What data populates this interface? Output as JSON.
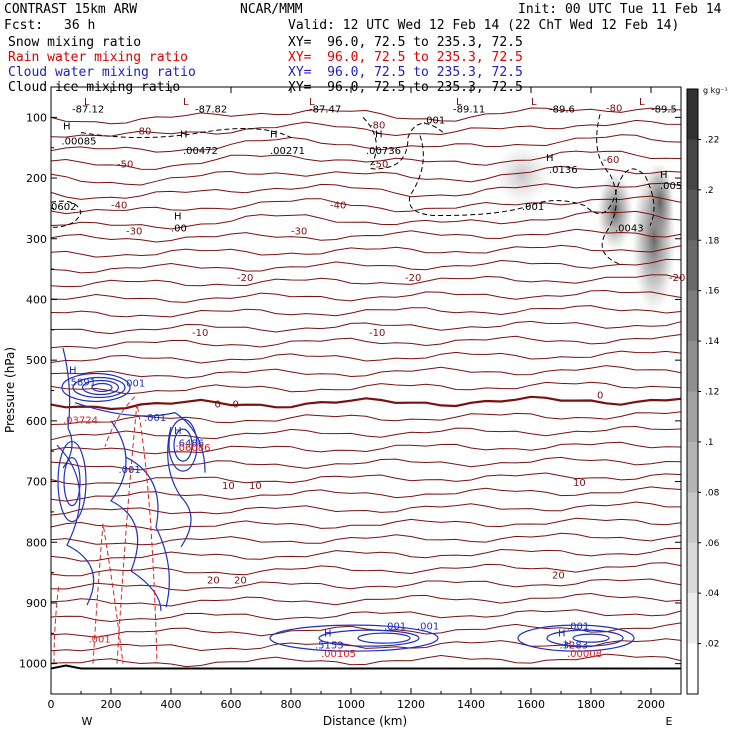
{
  "header": {
    "model": "CONTRAST 15km ARW",
    "center": "NCAR/MMM",
    "init": "Init: 00 UTC Tue 11 Feb 14",
    "fcst_label": "Fcst:",
    "fcst_value": "36 h",
    "valid": "Valid: 12 UTC Wed 12 Feb 14 (22 ChT Wed 12 Feb 14)"
  },
  "fields": [
    {
      "name": "Snow mixing ratio",
      "xy": "XY=  96.0, 72.5 to 235.3, 72.5",
      "color": "#000000"
    },
    {
      "name": "Rain water mixing ratio",
      "xy": "XY=  96.0, 72.5 to 235.3, 72.5",
      "color": "#e00000"
    },
    {
      "name": "Cloud water mixing ratio",
      "xy": "XY=  96.0, 72.5 to 235.3, 72.5",
      "color": "#2020c0"
    },
    {
      "name": "Cloud ice mixing ratio",
      "xy": "XY=  96.0, 72.5 to 235.3, 72.5",
      "color": "#000000"
    }
  ],
  "chart_data": {
    "type": "cross-section",
    "xlabel": "Distance (km)",
    "ylabel": "Pressure (hPa)",
    "xlim": [
      0,
      2100
    ],
    "ylim": [
      1050,
      50
    ],
    "x_ticks": [
      0,
      200,
      400,
      600,
      800,
      1000,
      1200,
      1400,
      1600,
      1800,
      2000
    ],
    "y_ticks": [
      100,
      200,
      300,
      400,
      500,
      600,
      700,
      800,
      900,
      1000
    ],
    "end_labels": {
      "left": "W",
      "right": "E"
    },
    "colorbar": {
      "units": "g kg⁻¹",
      "ticks": [
        0.02,
        0.04,
        0.06,
        0.08,
        0.1,
        0.12,
        0.14,
        0.16,
        0.18,
        0.2,
        0.22
      ],
      "tick_labels": [
        ".02",
        ".04",
        ".06",
        ".08",
        ".1",
        ".12",
        ".14",
        ".16",
        ".18",
        ".2",
        ".22"
      ],
      "max": 0.24
    },
    "temperature_labels": [
      {
        "x": 280,
        "p": 128,
        "text": "-80"
      },
      {
        "x": 1060,
        "p": 118,
        "text": "-80"
      },
      {
        "x": 1850,
        "p": 90,
        "text": "-80"
      },
      {
        "x": 1840,
        "p": 175,
        "text": "-60"
      },
      {
        "x": 220,
        "p": 183,
        "text": "-50"
      },
      {
        "x": 1070,
        "p": 183,
        "text": "-50"
      },
      {
        "x": 200,
        "p": 250,
        "text": "-40"
      },
      {
        "x": 930,
        "p": 250,
        "text": "-40"
      },
      {
        "x": 250,
        "p": 293,
        "text": "-30"
      },
      {
        "x": 800,
        "p": 293,
        "text": "-30"
      },
      {
        "x": 620,
        "p": 370,
        "text": "-20"
      },
      {
        "x": 1180,
        "p": 370,
        "text": "-20"
      },
      {
        "x": 2060,
        "p": 370,
        "text": "-20"
      },
      {
        "x": 470,
        "p": 460,
        "text": "-10"
      },
      {
        "x": 1060,
        "p": 460,
        "text": "-10"
      },
      {
        "x": 545,
        "p": 578,
        "text": "0"
      },
      {
        "x": 605,
        "p": 578,
        "text": "0"
      },
      {
        "x": 1820,
        "p": 563,
        "text": "0"
      },
      {
        "x": 570,
        "p": 712,
        "text": "10"
      },
      {
        "x": 660,
        "p": 712,
        "text": "10"
      },
      {
        "x": 1740,
        "p": 707,
        "text": "10"
      },
      {
        "x": 520,
        "p": 868,
        "text": "20"
      },
      {
        "x": 610,
        "p": 868,
        "text": "20"
      },
      {
        "x": 1670,
        "p": 860,
        "text": "20"
      }
    ],
    "tropopause_minima": [
      {
        "x": 70,
        "p": 92,
        "text": "-87.12"
      },
      {
        "x": 480,
        "p": 92,
        "text": "-87.82"
      },
      {
        "x": 860,
        "p": 92,
        "text": "-87.47"
      },
      {
        "x": 1340,
        "p": 92,
        "text": "-89.11"
      },
      {
        "x": 1660,
        "p": 92,
        "text": "-89.6"
      },
      {
        "x": 2000,
        "p": 92,
        "text": "-89.5"
      }
    ],
    "ice_maxima": [
      {
        "x": 35,
        "p": 145,
        "text": ".00085"
      },
      {
        "x": 440,
        "p": 160,
        "text": ".00472"
      },
      {
        "x": 730,
        "p": 160,
        "text": ".00271"
      },
      {
        "x": 1050,
        "p": 160,
        "text": ".00736"
      },
      {
        "x": 1660,
        "p": 192,
        "text": ".0136"
      },
      {
        "x": 2030,
        "p": 218,
        "text": ".005"
      },
      {
        "x": 0,
        "p": 253,
        "text": "0602"
      },
      {
        "x": 400,
        "p": 288,
        "text": ".00"
      }
    ],
    "ice_contour_labels": [
      {
        "x": 1240,
        "p": 110,
        "text": ".001"
      },
      {
        "x": 1570,
        "p": 253,
        "text": ".001"
      },
      {
        "x": 1880,
        "p": 288,
        "text": ".0043"
      }
    ],
    "cloud_water_labels": [
      {
        "x": 55,
        "p": 542,
        "text": ".5891"
      },
      {
        "x": 240,
        "p": 543,
        "text": ".001"
      },
      {
        "x": 310,
        "p": 600,
        "text": ".001"
      },
      {
        "x": 225,
        "p": 686,
        "text": ".001"
      },
      {
        "x": 415,
        "p": 642,
        "text": ".6486"
      },
      {
        "x": 1110,
        "p": 944,
        "text": ".001"
      },
      {
        "x": 1220,
        "p": 944,
        "text": ".001"
      },
      {
        "x": 880,
        "p": 975,
        "text": ".5153"
      },
      {
        "x": 1695,
        "p": 975,
        "text": ".3283"
      },
      {
        "x": 1720,
        "p": 944,
        "text": ".001"
      }
    ],
    "rain_labels": [
      {
        "x": 40,
        "p": 604,
        "text": ".03724"
      },
      {
        "x": 415,
        "p": 650,
        "text": ".06086"
      },
      {
        "x": 125,
        "p": 965,
        "text": ".001"
      },
      {
        "x": 900,
        "p": 989,
        "text": ".00105"
      },
      {
        "x": 1720,
        "p": 989,
        "text": ".00008"
      }
    ],
    "high_markers": [
      {
        "x": 40,
        "p": 120,
        "color": "#000000"
      },
      {
        "x": 430,
        "p": 133,
        "color": "#000000"
      },
      {
        "x": 730,
        "p": 133,
        "color": "#000000"
      },
      {
        "x": 1080,
        "p": 133,
        "color": "#000000"
      },
      {
        "x": 1650,
        "p": 172,
        "color": "#000000"
      },
      {
        "x": 2030,
        "p": 200,
        "color": "#000000"
      },
      {
        "x": 410,
        "p": 268,
        "color": "#000000"
      },
      {
        "x": 60,
        "p": 522,
        "color": "#2020c0"
      },
      {
        "x": 410,
        "p": 622,
        "color": "#2020c0"
      },
      {
        "x": 910,
        "p": 955,
        "color": "#2020c0"
      },
      {
        "x": 1690,
        "p": 955,
        "color": "#2020c0"
      },
      {
        "x": 1710,
        "p": 973,
        "color": "#e00000"
      }
    ],
    "low_markers": [
      {
        "x": 110,
        "p": 80
      },
      {
        "x": 440,
        "p": 80
      },
      {
        "x": 860,
        "p": 80
      },
      {
        "x": 1350,
        "p": 80
      },
      {
        "x": 1600,
        "p": 80
      },
      {
        "x": 1960,
        "p": 80
      }
    ]
  }
}
